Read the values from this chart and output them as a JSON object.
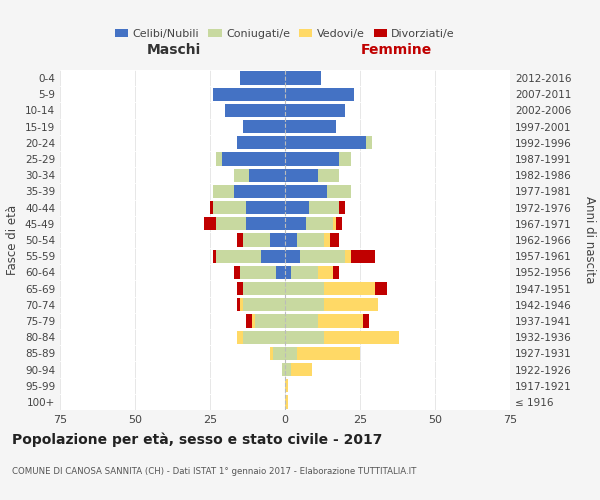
{
  "age_groups": [
    "100+",
    "95-99",
    "90-94",
    "85-89",
    "80-84",
    "75-79",
    "70-74",
    "65-69",
    "60-64",
    "55-59",
    "50-54",
    "45-49",
    "40-44",
    "35-39",
    "30-34",
    "25-29",
    "20-24",
    "15-19",
    "10-14",
    "5-9",
    "0-4"
  ],
  "birth_years": [
    "≤ 1916",
    "1917-1921",
    "1922-1926",
    "1927-1931",
    "1932-1936",
    "1937-1941",
    "1942-1946",
    "1947-1951",
    "1952-1956",
    "1957-1961",
    "1962-1966",
    "1967-1971",
    "1972-1976",
    "1977-1981",
    "1982-1986",
    "1987-1991",
    "1992-1996",
    "1997-2001",
    "2002-2006",
    "2007-2011",
    "2012-2016"
  ],
  "males": {
    "celibi": [
      0,
      0,
      0,
      0,
      0,
      0,
      0,
      0,
      3,
      8,
      5,
      13,
      13,
      17,
      12,
      21,
      16,
      14,
      20,
      24,
      15
    ],
    "coniugati": [
      0,
      0,
      1,
      4,
      14,
      10,
      14,
      14,
      12,
      15,
      9,
      10,
      11,
      7,
      5,
      2,
      0,
      0,
      0,
      0,
      0
    ],
    "vedovi": [
      0,
      0,
      0,
      1,
      2,
      1,
      1,
      0,
      0,
      0,
      0,
      0,
      0,
      0,
      0,
      0,
      0,
      0,
      0,
      0,
      0
    ],
    "divorziati": [
      0,
      0,
      0,
      0,
      0,
      2,
      1,
      2,
      2,
      1,
      2,
      4,
      1,
      0,
      0,
      0,
      0,
      0,
      0,
      0,
      0
    ]
  },
  "females": {
    "nubili": [
      0,
      0,
      0,
      0,
      0,
      0,
      0,
      0,
      2,
      5,
      4,
      7,
      8,
      14,
      11,
      18,
      27,
      17,
      20,
      23,
      12
    ],
    "coniugate": [
      0,
      0,
      2,
      4,
      13,
      11,
      13,
      13,
      9,
      15,
      9,
      9,
      10,
      8,
      7,
      4,
      2,
      0,
      0,
      0,
      0
    ],
    "vedove": [
      1,
      1,
      7,
      21,
      25,
      15,
      18,
      17,
      5,
      2,
      2,
      1,
      0,
      0,
      0,
      0,
      0,
      0,
      0,
      0,
      0
    ],
    "divorziate": [
      0,
      0,
      0,
      0,
      0,
      2,
      0,
      4,
      2,
      8,
      3,
      2,
      2,
      0,
      0,
      0,
      0,
      0,
      0,
      0,
      0
    ]
  },
  "colors": {
    "celibi_nubili": "#4472c4",
    "coniugati": "#c8d9a0",
    "vedovi": "#ffd966",
    "divorziati": "#c00000"
  },
  "title": "Popolazione per età, sesso e stato civile - 2017",
  "subtitle": "COMUNE DI CANOSA SANNITA (CH) - Dati ISTAT 1° gennaio 2017 - Elaborazione TUTTITALIA.IT",
  "xlabel_left": "Maschi",
  "xlabel_right": "Femmine",
  "ylabel_left": "Fasce di età",
  "ylabel_right": "Anni di nascita",
  "xlim": 75,
  "bg_color": "#f5f5f5",
  "plot_bg": "#ffffff",
  "legend_labels": [
    "Celibi/Nubili",
    "Coniugati/e",
    "Vedovi/e",
    "Divorziati/e"
  ]
}
